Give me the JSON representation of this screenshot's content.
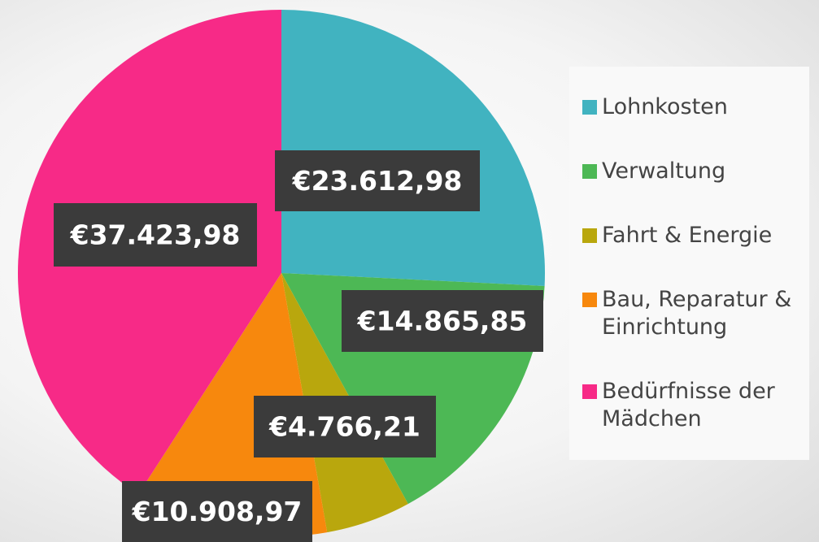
{
  "chart_data": {
    "type": "pie",
    "categories": [
      "Lohnkosten",
      "Verwaltung",
      "Fahrt & Energie",
      "Bau, Reparatur & Einrichtung",
      "Bedürfnisse der Mädchen"
    ],
    "values": [
      23612.98,
      14865.85,
      4766.21,
      10908.97,
      37423.98
    ],
    "value_labels": [
      "€23.612,98",
      "€14.865,85",
      "€4.766,21",
      "€10.908,97",
      "€37.423,98"
    ],
    "colors": [
      "#41b3c0",
      "#4db855",
      "#b9a70d",
      "#f7880d",
      "#f72a87"
    ],
    "legend": "right"
  }
}
